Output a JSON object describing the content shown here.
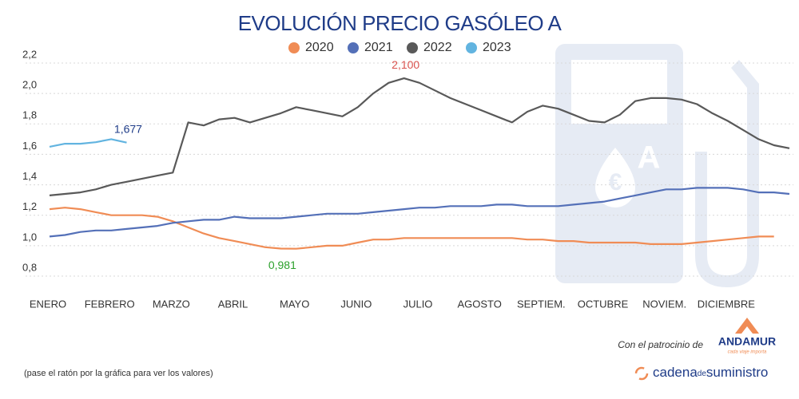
{
  "chart_data": {
    "type": "line",
    "title": "EVOLUCIÓN PRECIO GASÓLEO A",
    "categories": [
      "ENERO",
      null,
      null,
      null,
      "FEBRERO",
      null,
      null,
      null,
      "MARZO",
      null,
      null,
      null,
      "ABRIL",
      null,
      null,
      null,
      "MAYO",
      null,
      null,
      null,
      "JUNIO",
      null,
      null,
      null,
      "JULIO",
      null,
      null,
      null,
      "AGOSTO",
      null,
      null,
      null,
      "SEPTIEM.",
      null,
      null,
      null,
      "OCTUBRE",
      null,
      null,
      null,
      "NOVIEM.",
      null,
      null,
      null,
      "DICIEMBRE",
      null,
      null,
      null,
      null
    ],
    "series": [
      {
        "name": "2020",
        "color": "#f08c55",
        "label_color": "#2ca02c",
        "values": [
          1.24,
          1.25,
          1.24,
          1.22,
          1.2,
          1.2,
          1.2,
          1.19,
          1.16,
          1.12,
          1.08,
          1.05,
          1.03,
          1.01,
          0.99,
          0.981,
          0.98,
          0.99,
          1.0,
          1.0,
          1.02,
          1.04,
          1.04,
          1.05,
          1.05,
          1.05,
          1.05,
          1.05,
          1.05,
          1.05,
          1.05,
          1.04,
          1.04,
          1.03,
          1.03,
          1.02,
          1.02,
          1.02,
          1.02,
          1.01,
          1.01,
          1.01,
          1.02,
          1.03,
          1.04,
          1.05,
          1.06,
          1.06,
          null
        ],
        "value_labels": [
          null,
          null,
          null,
          null,
          null,
          null,
          null,
          null,
          null,
          null,
          null,
          null,
          null,
          null,
          null,
          "0,981",
          null,
          null,
          null,
          null,
          null,
          null,
          null,
          null,
          null,
          null,
          null,
          null,
          null,
          null,
          null,
          null,
          null,
          null,
          null,
          null,
          null,
          null,
          null,
          null,
          null,
          null,
          null,
          null,
          null,
          null,
          null,
          null,
          null
        ]
      },
      {
        "name": "2021",
        "color": "#5470b8",
        "label_color": "#1f3c88",
        "values": [
          1.06,
          1.07,
          1.09,
          1.1,
          1.1,
          1.11,
          1.12,
          1.13,
          1.15,
          1.16,
          1.17,
          1.17,
          1.19,
          1.18,
          1.18,
          1.18,
          1.19,
          1.2,
          1.21,
          1.21,
          1.21,
          1.22,
          1.23,
          1.24,
          1.25,
          1.25,
          1.26,
          1.26,
          1.26,
          1.27,
          1.27,
          1.26,
          1.26,
          1.26,
          1.27,
          1.28,
          1.29,
          1.31,
          1.33,
          1.35,
          1.37,
          1.37,
          1.38,
          1.38,
          1.38,
          1.37,
          1.35,
          1.35,
          1.34
        ]
      },
      {
        "name": "2022",
        "color": "#595959",
        "label_color": "#d9534f",
        "values": [
          1.33,
          1.34,
          1.35,
          1.37,
          1.4,
          1.42,
          1.44,
          1.46,
          1.48,
          1.81,
          1.79,
          1.83,
          1.84,
          1.81,
          1.84,
          1.87,
          1.91,
          1.89,
          1.87,
          1.85,
          1.91,
          2.0,
          2.07,
          2.1,
          2.07,
          2.02,
          1.97,
          1.93,
          1.89,
          1.85,
          1.81,
          1.88,
          1.92,
          1.9,
          1.86,
          1.82,
          1.81,
          1.86,
          1.95,
          1.97,
          1.97,
          1.96,
          1.93,
          1.87,
          1.82,
          1.76,
          1.7,
          1.66,
          1.64
        ],
        "value_labels": [
          null,
          null,
          null,
          null,
          null,
          null,
          null,
          null,
          null,
          null,
          null,
          null,
          null,
          null,
          null,
          null,
          null,
          null,
          null,
          null,
          null,
          null,
          null,
          "2,100",
          null,
          null,
          null,
          null,
          null,
          null,
          null,
          null,
          null,
          null,
          null,
          null,
          null,
          null,
          null,
          null,
          null,
          null,
          null,
          null,
          null,
          null,
          null,
          null,
          null
        ]
      },
      {
        "name": "2023",
        "color": "#62b4e0",
        "label_color": "#1f3c88",
        "values": [
          1.65,
          1.67,
          1.67,
          1.68,
          1.7,
          1.677,
          null,
          null,
          null,
          null,
          null,
          null,
          null,
          null,
          null,
          null,
          null,
          null,
          null,
          null,
          null,
          null,
          null,
          null,
          null,
          null,
          null,
          null,
          null,
          null,
          null,
          null,
          null,
          null,
          null,
          null,
          null,
          null,
          null,
          null,
          null,
          null,
          null,
          null,
          null,
          null,
          null,
          null,
          null
        ],
        "value_labels": [
          null,
          null,
          null,
          null,
          null,
          "1,677",
          null,
          null,
          null,
          null,
          null,
          null,
          null,
          null,
          null,
          null,
          null,
          null,
          null,
          null,
          null,
          null,
          null,
          null,
          null,
          null,
          null,
          null,
          null,
          null,
          null,
          null,
          null,
          null,
          null,
          null,
          null,
          null,
          null,
          null,
          null,
          null,
          null,
          null,
          null,
          null,
          null,
          null,
          null
        ]
      }
    ],
    "ylim": [
      0.8,
      2.2
    ],
    "yticks": [
      {
        "value": 0.8,
        "label": "0,8"
      },
      {
        "value": 1.0,
        "label": "1,0"
      },
      {
        "value": 1.2,
        "label": "1,2"
      },
      {
        "value": 1.4,
        "label": "1,4"
      },
      {
        "value": 1.6,
        "label": "1,6"
      },
      {
        "value": 1.8,
        "label": "1,8"
      },
      {
        "value": 2.0,
        "label": "2,0"
      },
      {
        "value": 2.2,
        "label": "2,2"
      }
    ],
    "grid": true
  },
  "footer": {
    "note": "(pase el ratón por la gráfica para ver los valores)",
    "sponsor_text": "Con el patrocinio de",
    "sponsor_name": "ANDAMUR",
    "sponsor_tagline": "cada viaje importa",
    "brand_a": "cadena",
    "brand_b": "de",
    "brand_c": "suministro"
  }
}
